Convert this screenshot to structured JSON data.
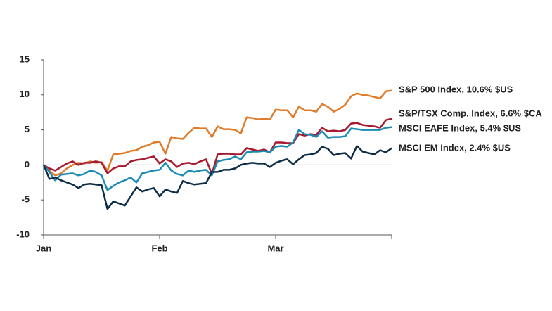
{
  "chart_data": {
    "type": "line",
    "categories": [
      "Jan",
      null,
      null,
      null,
      null,
      null,
      null,
      null,
      null,
      null,
      null,
      null,
      null,
      null,
      null,
      null,
      null,
      null,
      null,
      null,
      "Feb",
      null,
      null,
      null,
      null,
      null,
      null,
      null,
      null,
      null,
      null,
      null,
      null,
      null,
      null,
      null,
      null,
      null,
      null,
      null,
      "Mar",
      null,
      null,
      null,
      null,
      null,
      null,
      null,
      null,
      null,
      null,
      null,
      null,
      null,
      null,
      null,
      null,
      null,
      null,
      null,
      null
    ],
    "series": [
      {
        "name": "S&P 500 Index, 10.6% $US",
        "color": "#e07b2a",
        "values": [
          0,
          -0.8,
          -1.5,
          -1.2,
          -0.5,
          0,
          0.3,
          0.2,
          0.5,
          0.3,
          0.4,
          -0.8,
          1.5,
          1.6,
          1.7,
          2.0,
          2.1,
          2.6,
          2.8,
          3.2,
          3.3,
          1.6,
          4.0,
          3.8,
          3.7,
          4.6,
          5.3,
          5.2,
          5.2,
          4.0,
          5.5,
          5.1,
          5.1,
          5.0,
          4.5,
          6.8,
          6.7,
          6.5,
          6.6,
          6.5,
          7.9,
          7.8,
          7.8,
          6.8,
          8.3,
          7.8,
          7.8,
          7.6,
          8.7,
          8.3,
          7.6,
          8.0,
          8.6,
          9.8,
          10.2,
          10.0,
          9.9,
          9.7,
          9.5,
          10.5,
          10.6
        ]
      },
      {
        "name": "S&P/TSX Comp. Index, 6.6% $CA",
        "color": "#a6192e",
        "values": [
          0,
          -0.5,
          -0.8,
          -0.3,
          0.2,
          0.5,
          0,
          0.3,
          0.3,
          0.5,
          0.3,
          -1.2,
          -0.5,
          -0.2,
          -0.2,
          0.5,
          0.7,
          0.8,
          1.0,
          1.2,
          0.2,
          0.8,
          0.5,
          -0.3,
          0.2,
          0.3,
          0.1,
          0.5,
          0.8,
          -1.3,
          1.5,
          1.6,
          1.6,
          1.5,
          1.5,
          2.4,
          2.2,
          2.0,
          2.2,
          1.8,
          3.2,
          3.2,
          3.1,
          3.1,
          4.4,
          4.2,
          4.4,
          4.3,
          5.3,
          4.8,
          4.9,
          4.8,
          5.0,
          5.9,
          6.0,
          5.7,
          5.6,
          5.5,
          5.3,
          6.4,
          6.6
        ]
      },
      {
        "name": "MSCI EAFE Index, 5.4% $US",
        "color": "#1a8bb3",
        "values": [
          0,
          -1.0,
          -2.2,
          -1.4,
          -1.3,
          -1.2,
          -1.5,
          -1.3,
          -0.8,
          -1.0,
          -1.5,
          -3.6,
          -3.0,
          -2.5,
          -2.2,
          -1.8,
          -2.5,
          -1.2,
          -1.0,
          -0.8,
          -0.7,
          0.3,
          -0.8,
          -1.3,
          -1.5,
          -0.8,
          -1.0,
          -0.8,
          -0.7,
          -1.5,
          0.5,
          0.7,
          0.8,
          1.2,
          0.8,
          1.8,
          1.9,
          1.9,
          2.0,
          1.8,
          2.6,
          2.7,
          2.6,
          3.2,
          5.0,
          4.4,
          4.3,
          4.0,
          4.8,
          3.9,
          4.0,
          4.0,
          4.1,
          5.2,
          5.1,
          5.0,
          5.0,
          5.0,
          5.0,
          5.3,
          5.4
        ]
      },
      {
        "name": "MSCI EM Index, 2.4% $US",
        "color": "#0c2d48",
        "values": [
          0,
          -2.0,
          -1.8,
          -2.2,
          -2.5,
          -2.8,
          -3.3,
          -2.8,
          -2.7,
          -2.8,
          -2.9,
          -6.3,
          -5.2,
          -5.5,
          -5.8,
          -4.5,
          -3.2,
          -3.8,
          -3.5,
          -3.3,
          -4.5,
          -3.5,
          -3.8,
          -4.0,
          -2.3,
          -2.6,
          -2.8,
          -2.7,
          -2.6,
          -1.0,
          -1.0,
          -0.7,
          -0.7,
          -0.5,
          0,
          0.2,
          0.3,
          0.2,
          0.2,
          -0.3,
          0.3,
          0.6,
          0.8,
          0.1,
          0.8,
          1.4,
          1.5,
          1.7,
          2.6,
          2.3,
          1.4,
          1.6,
          1.7,
          0.9,
          2.7,
          1.9,
          1.7,
          1.5,
          2.1,
          1.8,
          2.4
        ]
      }
    ],
    "ylim": [
      -10,
      15
    ],
    "yticks": [
      -10,
      -5,
      0,
      5,
      10,
      15
    ]
  }
}
